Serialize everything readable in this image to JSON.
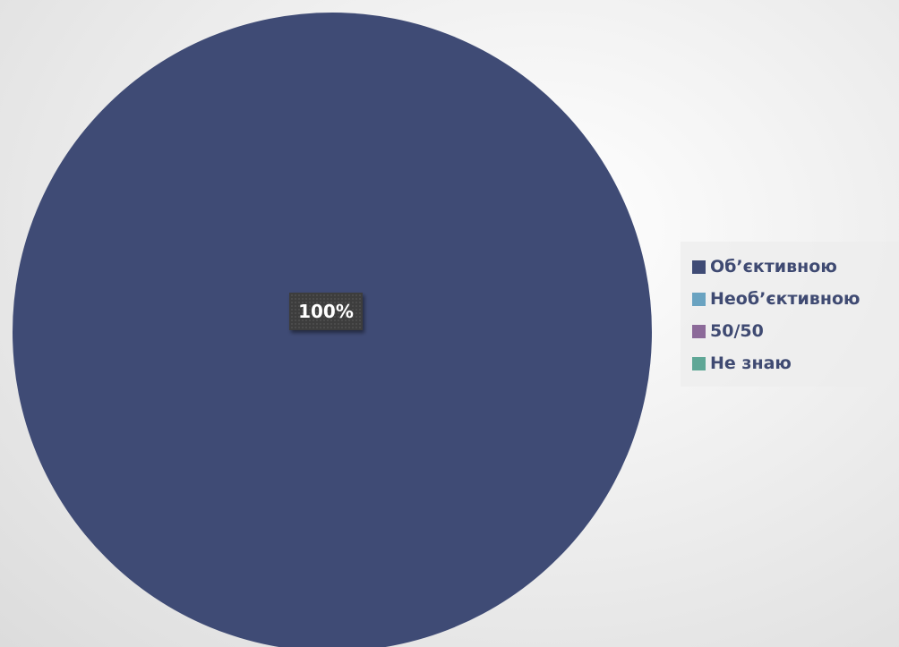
{
  "chart_data": {
    "type": "pie",
    "categories": [
      "Об’єктивною",
      "Необ’єктивною",
      "50/50",
      "Не знаю"
    ],
    "values": [
      100,
      0,
      0,
      0
    ],
    "colors": [
      "#3f4b75",
      "#6aa3c1",
      "#8c6a99",
      "#5fa796"
    ],
    "data_labels": [
      "100%"
    ],
    "legend_position": "right"
  }
}
